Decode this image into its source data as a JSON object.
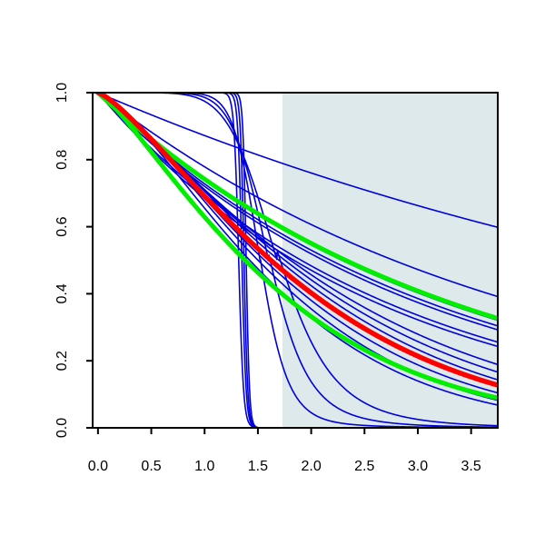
{
  "chart_data": {
    "type": "line",
    "title": "",
    "xlabel": "",
    "ylabel": "",
    "xlim": [
      -0.05,
      3.75
    ],
    "ylim": [
      0,
      1
    ],
    "x_ticks": [
      0.0,
      0.5,
      1.0,
      1.5,
      2.0,
      2.5,
      3.0,
      3.5
    ],
    "y_ticks": [
      0.0,
      0.2,
      0.4,
      0.6,
      0.8,
      1.0
    ],
    "x_tick_labels": [
      "0.0",
      "0.5",
      "1.0",
      "1.5",
      "2.0",
      "2.5",
      "3.0",
      "3.5"
    ],
    "y_tick_labels": [
      "0.0",
      "0.2",
      "0.4",
      "0.6",
      "0.8",
      "1.0"
    ],
    "grid": false,
    "legend": "none",
    "shaded_region": {
      "x_from": 1.73,
      "x_to": 3.75,
      "y_from": 0,
      "y_to": 1,
      "color": "#dde9ea"
    },
    "colors": {
      "blue": "#0000dd",
      "green": "#00ee00",
      "red": "#ff0000",
      "axis": "#000000"
    },
    "series": [
      {
        "color": "blue",
        "kind": "weibull",
        "scale": 7.3,
        "shape": 1.0,
        "width": 1.6
      },
      {
        "color": "blue",
        "kind": "weibull",
        "scale": 4.0,
        "shape": 1.0,
        "width": 1.6
      },
      {
        "color": "blue",
        "kind": "weibull",
        "scale": 3.3,
        "shape": 1.0,
        "width": 1.6
      },
      {
        "color": "blue",
        "kind": "weibull",
        "scale": 3.15,
        "shape": 1.0,
        "width": 1.6
      },
      {
        "color": "blue",
        "kind": "weibull",
        "scale": 3.05,
        "shape": 1.0,
        "width": 1.6
      },
      {
        "color": "blue",
        "kind": "weibull",
        "scale": 2.75,
        "shape": 1.0,
        "width": 1.6
      },
      {
        "color": "blue",
        "kind": "weibull",
        "scale": 2.65,
        "shape": 1.0,
        "width": 1.6
      },
      {
        "color": "blue",
        "kind": "weibull",
        "scale": 2.45,
        "shape": 1.2,
        "width": 1.6
      },
      {
        "color": "blue",
        "kind": "weibull",
        "scale": 2.35,
        "shape": 1.25,
        "width": 1.6
      },
      {
        "color": "blue",
        "kind": "weibull",
        "scale": 2.25,
        "shape": 1.3,
        "width": 1.6
      },
      {
        "color": "blue",
        "kind": "weibull",
        "scale": 2.15,
        "shape": 1.3,
        "width": 1.6
      },
      {
        "color": "blue",
        "kind": "weibull",
        "scale": 2.05,
        "shape": 1.35,
        "width": 1.6
      },
      {
        "color": "blue",
        "kind": "weibull",
        "scale": 1.95,
        "shape": 1.4,
        "width": 1.6
      },
      {
        "color": "blue",
        "kind": "weibull",
        "scale": 1.85,
        "shape": 1.4,
        "width": 1.6
      },
      {
        "color": "blue",
        "kind": "hill",
        "x50": 1.52,
        "slope": 12,
        "tail": 0.02,
        "width": 1.6
      },
      {
        "color": "blue",
        "kind": "hill",
        "x50": 1.6,
        "slope": 9,
        "tail": 0.04,
        "width": 1.6
      },
      {
        "color": "blue",
        "kind": "hill",
        "x50": 1.68,
        "slope": 7,
        "tail": 0.06,
        "width": 1.6
      },
      {
        "color": "blue",
        "kind": "hill",
        "x50": 1.32,
        "slope": 60,
        "tail": 0.0,
        "width": 1.6
      },
      {
        "color": "blue",
        "kind": "hill",
        "x50": 1.35,
        "slope": 70,
        "tail": 0.0,
        "width": 1.6
      },
      {
        "color": "blue",
        "kind": "hill",
        "x50": 1.37,
        "slope": 80,
        "tail": 0.0,
        "width": 1.6
      },
      {
        "color": "blue",
        "kind": "hill",
        "x50": 1.39,
        "slope": 90,
        "tail": 0.0,
        "width": 1.6
      },
      {
        "color": "green",
        "kind": "weibull",
        "scale": 3.35,
        "shape": 1.0,
        "width": 5
      },
      {
        "color": "green",
        "kind": "weibull",
        "scale": 1.85,
        "shape": 1.25,
        "width": 5
      },
      {
        "color": "red",
        "kind": "weibull",
        "scale": 2.15,
        "shape": 1.3,
        "width": 5.5
      }
    ]
  }
}
